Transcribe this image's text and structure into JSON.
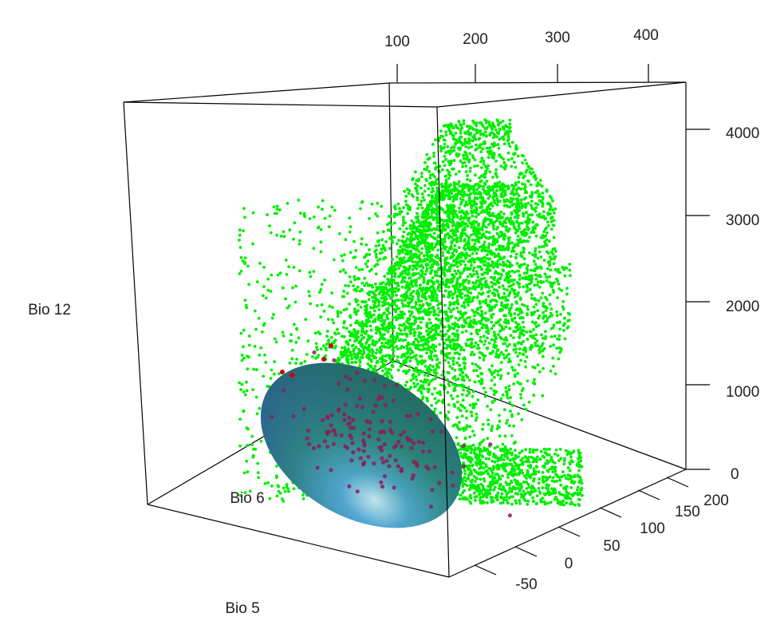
{
  "chart_data": {
    "type": "scatter",
    "dimensions": "3d",
    "axes": {
      "x": {
        "label": "Bio 5",
        "ticks": [
          "100",
          "200",
          "300",
          "400"
        ]
      },
      "y": {
        "label": "Bio 6",
        "ticks": [
          "-50",
          "0",
          "50",
          "100",
          "150",
          "200"
        ]
      },
      "z": {
        "label": "Bio 12",
        "ticks": [
          "0",
          "1000",
          "2000",
          "3000",
          "4000"
        ]
      }
    },
    "series": [
      {
        "color": "#00ee00",
        "marker": "point",
        "approx_count": 6000
      },
      {
        "color": "#cc0000",
        "marker": "point",
        "approx_count": 150
      }
    ],
    "overlay": {
      "type": "ellipsoid",
      "colors": {
        "fill_dark": "#3a5fb0",
        "fill_mid": "#2e8f6a",
        "highlight": "#d8f3ff"
      }
    },
    "grid": false
  }
}
